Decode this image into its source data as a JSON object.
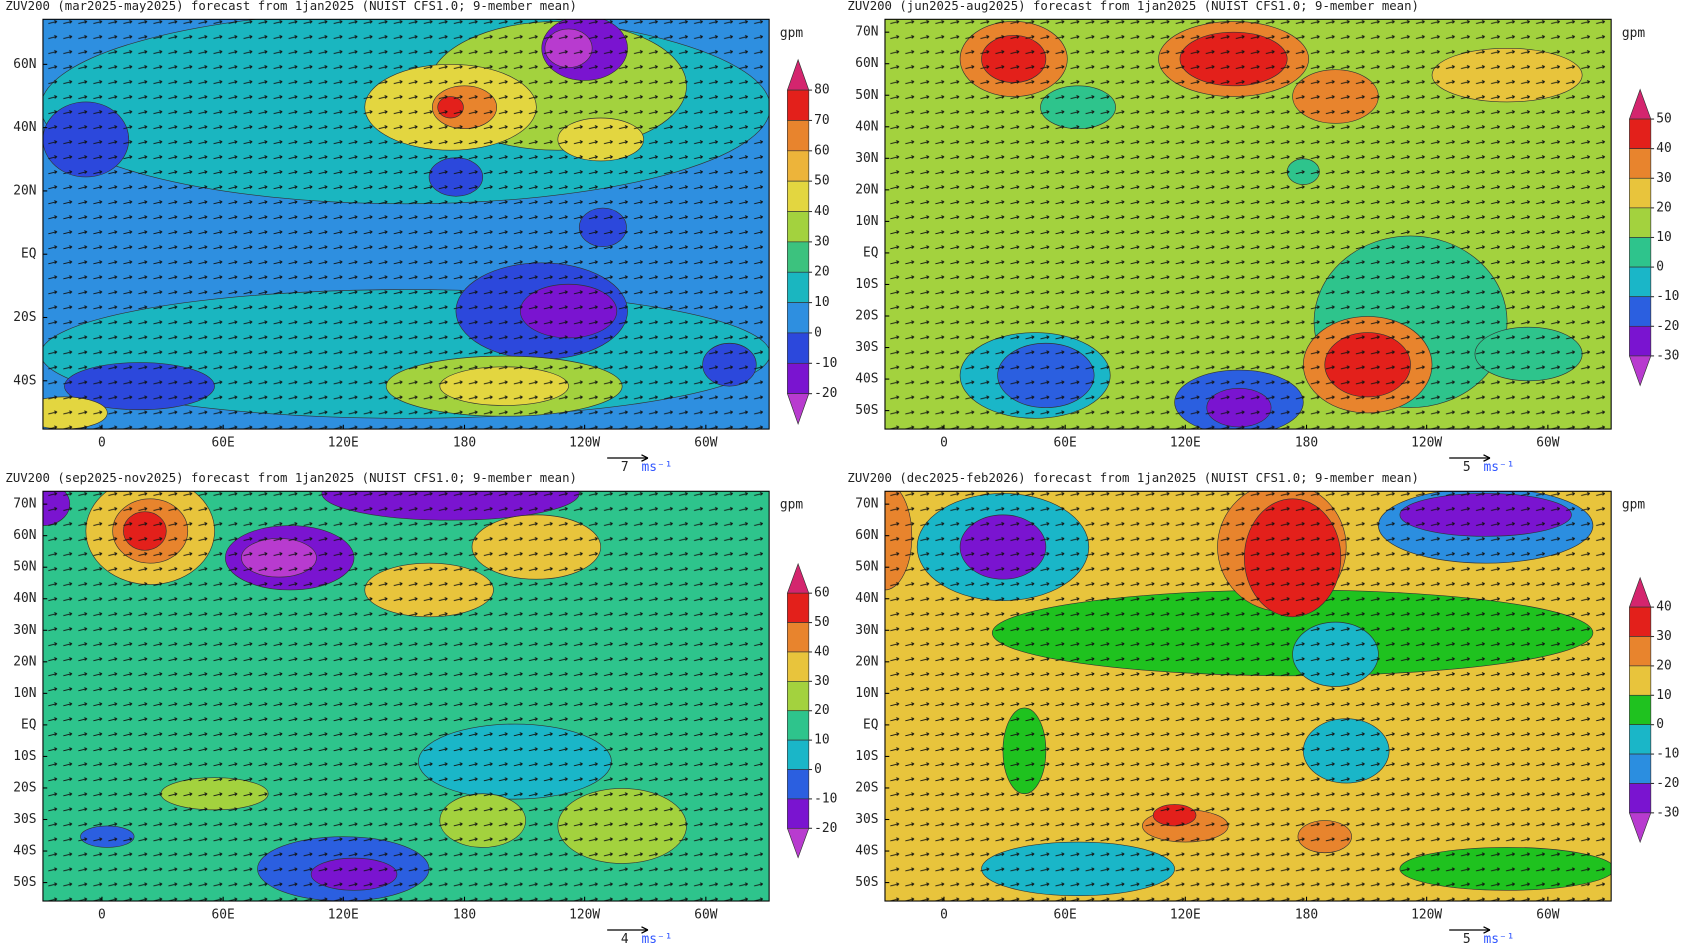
{
  "panels": [
    {
      "title": "ZUV200 (mar2025-may2025) forecast from 1jan2025 (NUIST CFS1.0; 9-member mean)",
      "lat_labels": [
        "60N",
        "40N",
        "20N",
        "EQ",
        "20S",
        "40S"
      ],
      "lon_labels": [
        "0",
        "60E",
        "120E",
        "180",
        "120W",
        "60W"
      ],
      "unit": "gpm",
      "colorbar": {
        "levels": [
          80,
          70,
          60,
          50,
          40,
          30,
          20,
          10,
          0,
          -10,
          -20
        ],
        "colors": [
          "#d4256e",
          "#e3201b",
          "#e8842d",
          "#edb43a",
          "#e3d640",
          "#a3d23e",
          "#3cc27e",
          "#1ab6c0",
          "#2e8fe0",
          "#2c48dc",
          "#7a14d0",
          "#b83bcf"
        ]
      },
      "ref_vector": {
        "value": 7,
        "unit": "ms⁻¹"
      }
    },
    {
      "title": "ZUV200 (jun2025-aug2025) forecast from 1jan2025 (NUIST CFS1.0; 9-member mean)",
      "lat_labels": [
        "70N",
        "60N",
        "50N",
        "40N",
        "30N",
        "20N",
        "10N",
        "EQ",
        "10S",
        "20S",
        "30S",
        "40S",
        "50S"
      ],
      "lon_labels": [
        "0",
        "60E",
        "120E",
        "180",
        "120W",
        "60W"
      ],
      "unit": "gpm",
      "colorbar": {
        "levels": [
          50,
          40,
          30,
          20,
          10,
          0,
          -10,
          -20,
          -30
        ],
        "colors": [
          "#d4256e",
          "#e3201b",
          "#e8842d",
          "#e8c43c",
          "#a3d23e",
          "#2ec48c",
          "#1ab6c8",
          "#2b5fe0",
          "#7a14d0",
          "#b83bcf"
        ]
      },
      "ref_vector": {
        "value": 5,
        "unit": "ms⁻¹"
      }
    },
    {
      "title": "ZUV200 (sep2025-nov2025) forecast from 1jan2025 (NUIST CFS1.0; 9-member mean)",
      "lat_labels": [
        "70N",
        "60N",
        "50N",
        "40N",
        "30N",
        "20N",
        "10N",
        "EQ",
        "10S",
        "20S",
        "30S",
        "40S",
        "50S"
      ],
      "lon_labels": [
        "0",
        "60E",
        "120E",
        "180",
        "120W",
        "60W"
      ],
      "unit": "gpm",
      "colorbar": {
        "levels": [
          60,
          50,
          40,
          30,
          20,
          10,
          0,
          -10,
          -20
        ],
        "colors": [
          "#d4256e",
          "#e3201b",
          "#e8842d",
          "#e8c43c",
          "#a3d23e",
          "#2ec48c",
          "#1ab6c8",
          "#2b5fe0",
          "#7a14d0",
          "#b83bcf"
        ]
      },
      "ref_vector": {
        "value": 4,
        "unit": "ms⁻¹"
      }
    },
    {
      "title": "ZUV200 (dec2025-feb2026) forecast from 1jan2025 (NUIST CFS1.0; 9-member mean)",
      "lat_labels": [
        "70N",
        "60N",
        "50N",
        "40N",
        "30N",
        "20N",
        "10N",
        "EQ",
        "10S",
        "20S",
        "30S",
        "40S",
        "50S"
      ],
      "lon_labels": [
        "0",
        "60E",
        "120E",
        "180",
        "120W",
        "60W"
      ],
      "unit": "gpm",
      "colorbar": {
        "levels": [
          40,
          30,
          20,
          10,
          0,
          -10,
          -20,
          -30
        ],
        "colors": [
          "#d4256e",
          "#e3201b",
          "#e8842d",
          "#e8c43c",
          "#1fc21f",
          "#1ab6c8",
          "#2b8ee0",
          "#7a14d0",
          "#b83bcf"
        ]
      },
      "ref_vector": {
        "value": 5,
        "unit": "ms⁻¹"
      }
    }
  ]
}
